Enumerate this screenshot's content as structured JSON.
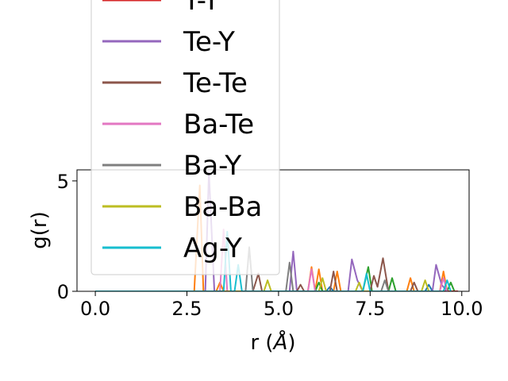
{
  "chart_data": {
    "type": "line",
    "title": "",
    "xlabel": "r (",
    "xlabel_unit": "Å",
    "xlabel_close": ")",
    "ylabel": "g(r)",
    "xlim": [
      -0.5,
      10.2
    ],
    "ylim": [
      0,
      5.5
    ],
    "x_ticks": [
      0.0,
      2.5,
      5.0,
      7.5,
      10.0
    ],
    "x_tick_labels": [
      "0.0",
      "2.5",
      "5.0",
      "7.5",
      "10.0"
    ],
    "y_ticks": [
      0,
      5
    ],
    "y_tick_labels": [
      "0",
      "5"
    ],
    "grid": false,
    "legend_position": "upper-left (overflowing top of axes)",
    "series": [
      {
        "name": "Y-Y",
        "color": "#d62728",
        "points": [
          [
            0,
            0
          ],
          [
            2.6,
            0
          ],
          [
            3.0,
            0
          ],
          [
            9.9,
            0
          ]
        ]
      },
      {
        "name": "Te-Y",
        "color": "#9467bd",
        "points": [
          [
            0,
            0
          ],
          [
            3.0,
            0
          ],
          [
            3.1,
            5.4
          ],
          [
            3.25,
            0
          ],
          [
            5.3,
            0
          ],
          [
            5.4,
            1.8
          ],
          [
            5.5,
            0
          ],
          [
            6.9,
            0
          ],
          [
            7.0,
            1.45
          ],
          [
            7.15,
            0.5
          ],
          [
            7.3,
            0
          ],
          [
            9.2,
            0
          ],
          [
            9.3,
            1.2
          ],
          [
            9.45,
            0.3
          ],
          [
            9.6,
            0
          ]
        ]
      },
      {
        "name": "Te-Te",
        "color": "#8c564b",
        "points": [
          [
            0,
            0
          ],
          [
            4.3,
            0
          ],
          [
            4.45,
            0.8
          ],
          [
            4.55,
            0
          ],
          [
            5.5,
            0
          ],
          [
            5.6,
            0.3
          ],
          [
            5.7,
            0
          ],
          [
            6.4,
            0
          ],
          [
            6.5,
            0.9
          ],
          [
            6.6,
            0
          ],
          [
            7.5,
            0
          ],
          [
            7.6,
            0.7
          ],
          [
            7.7,
            0.2
          ],
          [
            7.85,
            1.5
          ],
          [
            8.0,
            0
          ],
          [
            8.6,
            0
          ],
          [
            8.7,
            0.4
          ],
          [
            8.8,
            0
          ]
        ]
      },
      {
        "name": "Ba-Te",
        "color": "#e377c2",
        "points": [
          [
            0,
            0
          ],
          [
            3.4,
            0
          ],
          [
            3.5,
            2.8
          ],
          [
            3.6,
            0
          ],
          [
            5.8,
            0
          ],
          [
            5.9,
            1.0
          ],
          [
            6.0,
            0
          ],
          [
            9.4,
            0
          ],
          [
            9.5,
            0.6
          ],
          [
            9.6,
            0
          ]
        ]
      },
      {
        "name": "Ba-Y",
        "color": "#7f7f7f",
        "points": [
          [
            0,
            0
          ],
          [
            4.1,
            0
          ],
          [
            4.2,
            2.0
          ],
          [
            4.3,
            0
          ],
          [
            5.2,
            0
          ],
          [
            5.3,
            1.3
          ],
          [
            5.4,
            0
          ],
          [
            7.8,
            0
          ],
          [
            7.9,
            0.5
          ],
          [
            8.0,
            0
          ]
        ]
      },
      {
        "name": "Ba-Ba",
        "color": "#bcbd22",
        "points": [
          [
            0,
            0
          ],
          [
            4.6,
            0
          ],
          [
            4.7,
            0.5
          ],
          [
            4.8,
            0
          ],
          [
            6.1,
            0
          ],
          [
            6.2,
            0.6
          ],
          [
            6.3,
            0
          ],
          [
            7.1,
            0
          ],
          [
            7.2,
            0.4
          ],
          [
            7.3,
            0
          ],
          [
            8.9,
            0
          ],
          [
            9.0,
            0.5
          ],
          [
            9.1,
            0
          ]
        ]
      },
      {
        "name": "Ag-Y",
        "color": "#17becf",
        "points": [
          [
            0,
            0
          ],
          [
            3.5,
            0
          ],
          [
            3.6,
            2.7
          ],
          [
            3.7,
            0
          ],
          [
            3.8,
            0
          ],
          [
            3.9,
            1.2
          ],
          [
            4.0,
            0
          ],
          [
            7.3,
            0
          ],
          [
            7.4,
            0.8
          ],
          [
            7.5,
            0
          ],
          [
            9.5,
            0
          ],
          [
            9.6,
            0.5
          ],
          [
            9.7,
            0
          ]
        ]
      }
    ],
    "extra_series": [
      {
        "color": "#ff7f0e",
        "points": [
          [
            0,
            0
          ],
          [
            2.7,
            0
          ],
          [
            2.85,
            4.8
          ],
          [
            2.95,
            0
          ],
          [
            3.3,
            0
          ],
          [
            3.4,
            0.4
          ],
          [
            3.5,
            0
          ],
          [
            5.8,
            0
          ],
          [
            5.9,
            1.1
          ],
          [
            6.0,
            0
          ],
          [
            6.1,
            1.0
          ],
          [
            6.2,
            0
          ],
          [
            6.5,
            0
          ],
          [
            6.6,
            0.9
          ],
          [
            6.7,
            0
          ],
          [
            8.5,
            0
          ],
          [
            8.6,
            0.6
          ],
          [
            8.7,
            0
          ],
          [
            9.4,
            0
          ],
          [
            9.5,
            0.9
          ],
          [
            9.6,
            0
          ]
        ]
      },
      {
        "color": "#2ca02c",
        "points": [
          [
            0,
            0
          ],
          [
            6.0,
            0
          ],
          [
            6.1,
            0.4
          ],
          [
            6.2,
            0
          ],
          [
            7.3,
            0
          ],
          [
            7.45,
            1.1
          ],
          [
            7.55,
            0
          ],
          [
            8.0,
            0
          ],
          [
            8.1,
            0.6
          ],
          [
            8.2,
            0
          ],
          [
            9.6,
            0
          ],
          [
            9.7,
            0.4
          ],
          [
            9.8,
            0
          ]
        ]
      },
      {
        "color": "#1f77b4",
        "points": [
          [
            0,
            0
          ],
          [
            6.3,
            0
          ],
          [
            6.4,
            0.2
          ],
          [
            6.5,
            0
          ],
          [
            9.0,
            0
          ],
          [
            9.1,
            0.3
          ],
          [
            9.2,
            0
          ]
        ]
      }
    ]
  }
}
